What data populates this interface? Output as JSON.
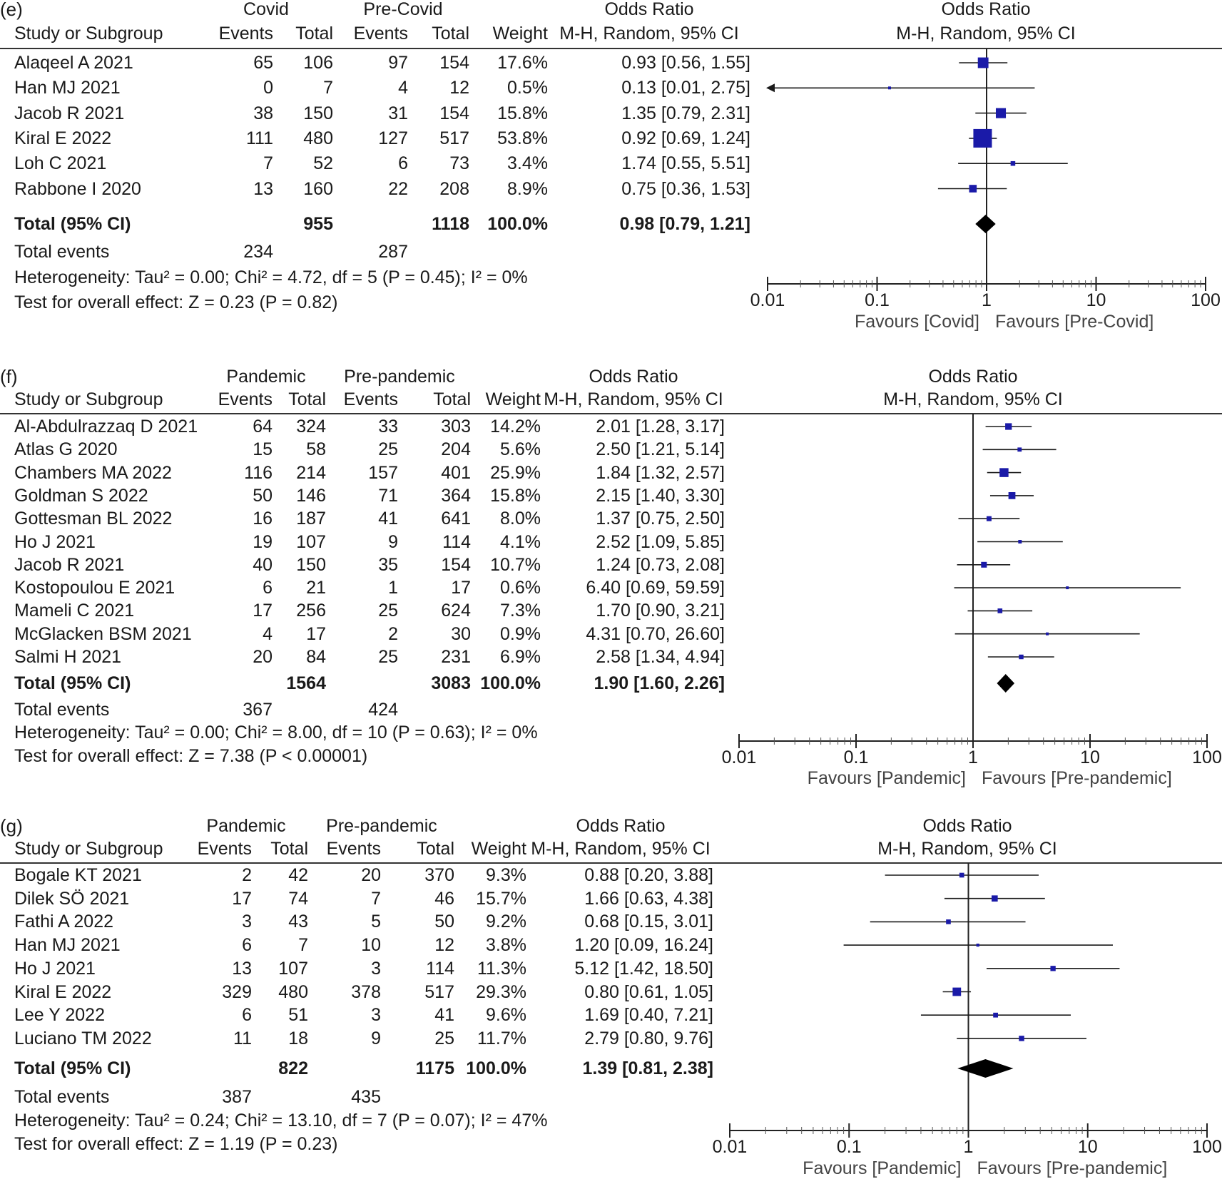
{
  "chart_data": [
    {
      "type": "forest",
      "panel_label": "(e)",
      "group1": "Covid",
      "group2": "Pre-Covid",
      "col_study": "Study or Subgroup",
      "col_events": "Events",
      "col_total": "Total",
      "col_weight": "Weight",
      "col_or": "Odds Ratio",
      "col_method": "M-H, Random, 95% CI",
      "studies": [
        {
          "name": "Alaqeel A 2021",
          "e1": "65",
          "n1": "106",
          "e2": "97",
          "n2": "154",
          "weight": "17.6%",
          "ci": "0.93 [0.56, 1.55]",
          "or": 0.93,
          "lo": 0.56,
          "hi": 1.55,
          "w": 17.6
        },
        {
          "name": "Han MJ 2021",
          "e1": "0",
          "n1": "7",
          "e2": "4",
          "n2": "12",
          "weight": "0.5%",
          "ci": "0.13 [0.01, 2.75]",
          "or": 0.13,
          "lo": 0.01,
          "hi": 2.75,
          "w": 0.5
        },
        {
          "name": "Jacob R 2021",
          "e1": "38",
          "n1": "150",
          "e2": "31",
          "n2": "154",
          "weight": "15.8%",
          "ci": "1.35 [0.79, 2.31]",
          "or": 1.35,
          "lo": 0.79,
          "hi": 2.31,
          "w": 15.8
        },
        {
          "name": "Kiral E 2022",
          "e1": "111",
          "n1": "480",
          "e2": "127",
          "n2": "517",
          "weight": "53.8%",
          "ci": "0.92 [0.69, 1.24]",
          "or": 0.92,
          "lo": 0.69,
          "hi": 1.24,
          "w": 53.8
        },
        {
          "name": "Loh C 2021",
          "e1": "7",
          "n1": "52",
          "e2": "6",
          "n2": "73",
          "weight": "3.4%",
          "ci": "1.74 [0.55, 5.51]",
          "or": 1.74,
          "lo": 0.55,
          "hi": 5.51,
          "w": 3.4
        },
        {
          "name": "Rabbone I 2020",
          "e1": "13",
          "n1": "160",
          "e2": "22",
          "n2": "208",
          "weight": "8.9%",
          "ci": "0.75 [0.36, 1.53]",
          "or": 0.75,
          "lo": 0.36,
          "hi": 1.53,
          "w": 8.9
        }
      ],
      "total": {
        "label": "Total (95% CI)",
        "n1": "955",
        "n2": "1118",
        "weight": "100.0%",
        "ci": "0.98 [0.79, 1.21]",
        "or": 0.98,
        "lo": 0.79,
        "hi": 1.21
      },
      "total_events": {
        "label": "Total events",
        "e1": "234",
        "e2": "287"
      },
      "heterogeneity": "Heterogeneity: Tau² = 0.00; Chi² = 4.72, df = 5 (P = 0.45); I² = 0%",
      "overall": "Test for overall effect: Z = 0.23 (P = 0.82)",
      "ticks": [
        "0.01",
        "0.1",
        "1",
        "10",
        "100"
      ],
      "favours_left": "Favours [Covid]",
      "favours_right": "Favours [Pre-Covid]",
      "xlim": [
        0.01,
        100
      ],
      "scale": "log"
    },
    {
      "type": "forest",
      "panel_label": "(f)",
      "group1": "Pandemic",
      "group2": "Pre-pandemic",
      "col_study": "Study or Subgroup",
      "col_events": "Events",
      "col_total": "Total",
      "col_weight": "Weight",
      "col_or": "Odds Ratio",
      "col_method": "M-H, Random, 95% CI",
      "studies": [
        {
          "name": "Al-Abdulrazzaq D 2021",
          "e1": "64",
          "n1": "324",
          "e2": "33",
          "n2": "303",
          "weight": "14.2%",
          "ci": "2.01 [1.28, 3.17]",
          "or": 2.01,
          "lo": 1.28,
          "hi": 3.17,
          "w": 14.2
        },
        {
          "name": "Atlas G 2020",
          "e1": "15",
          "n1": "58",
          "e2": "25",
          "n2": "204",
          "weight": "5.6%",
          "ci": "2.50 [1.21, 5.14]",
          "or": 2.5,
          "lo": 1.21,
          "hi": 5.14,
          "w": 5.6
        },
        {
          "name": "Chambers MA 2022",
          "e1": "116",
          "n1": "214",
          "e2": "157",
          "n2": "401",
          "weight": "25.9%",
          "ci": "1.84 [1.32, 2.57]",
          "or": 1.84,
          "lo": 1.32,
          "hi": 2.57,
          "w": 25.9
        },
        {
          "name": "Goldman S 2022",
          "e1": "50",
          "n1": "146",
          "e2": "71",
          "n2": "364",
          "weight": "15.8%",
          "ci": "2.15 [1.40, 3.30]",
          "or": 2.15,
          "lo": 1.4,
          "hi": 3.3,
          "w": 15.8
        },
        {
          "name": "Gottesman BL 2022",
          "e1": "16",
          "n1": "187",
          "e2": "41",
          "n2": "641",
          "weight": "8.0%",
          "ci": "1.37 [0.75, 2.50]",
          "or": 1.37,
          "lo": 0.75,
          "hi": 2.5,
          "w": 8.0
        },
        {
          "name": "Ho J 2021",
          "e1": "19",
          "n1": "107",
          "e2": "9",
          "n2": "114",
          "weight": "4.1%",
          "ci": "2.52 [1.09, 5.85]",
          "or": 2.52,
          "lo": 1.09,
          "hi": 5.85,
          "w": 4.1
        },
        {
          "name": "Jacob R 2021",
          "e1": "40",
          "n1": "150",
          "e2": "35",
          "n2": "154",
          "weight": "10.7%",
          "ci": "1.24 [0.73, 2.08]",
          "or": 1.24,
          "lo": 0.73,
          "hi": 2.08,
          "w": 10.7
        },
        {
          "name": "Kostopoulou E 2021",
          "e1": "6",
          "n1": "21",
          "e2": "1",
          "n2": "17",
          "weight": "0.6%",
          "ci": "6.40 [0.69, 59.59]",
          "or": 6.4,
          "lo": 0.69,
          "hi": 59.59,
          "w": 0.6
        },
        {
          "name": "Mameli C 2021",
          "e1": "17",
          "n1": "256",
          "e2": "25",
          "n2": "624",
          "weight": "7.3%",
          "ci": "1.70 [0.90, 3.21]",
          "or": 1.7,
          "lo": 0.9,
          "hi": 3.21,
          "w": 7.3
        },
        {
          "name": "McGlacken BSM 2021",
          "e1": "4",
          "n1": "17",
          "e2": "2",
          "n2": "30",
          "weight": "0.9%",
          "ci": "4.31 [0.70, 26.60]",
          "or": 4.31,
          "lo": 0.7,
          "hi": 26.6,
          "w": 0.9
        },
        {
          "name": "Salmi H 2021",
          "e1": "20",
          "n1": "84",
          "e2": "25",
          "n2": "231",
          "weight": "6.9%",
          "ci": "2.58 [1.34, 4.94]",
          "or": 2.58,
          "lo": 1.34,
          "hi": 4.94,
          "w": 6.9
        }
      ],
      "total": {
        "label": "Total (95% CI)",
        "n1": "1564",
        "n2": "3083",
        "weight": "100.0%",
        "ci": "1.90 [1.60, 2.26]",
        "or": 1.9,
        "lo": 1.6,
        "hi": 2.26
      },
      "total_events": {
        "label": "Total events",
        "e1": "367",
        "e2": "424"
      },
      "heterogeneity": "Heterogeneity: Tau² = 0.00; Chi² = 8.00, df = 10 (P = 0.63); I² = 0%",
      "overall": "Test for overall effect: Z = 7.38 (P < 0.00001)",
      "ticks": [
        "0.01",
        "0.1",
        "1",
        "10",
        "100"
      ],
      "favours_left": "Favours [Pandemic]",
      "favours_right": "Favours [Pre-pandemic]",
      "xlim": [
        0.01,
        100
      ],
      "scale": "log"
    },
    {
      "type": "forest",
      "panel_label": "(g)",
      "group1": "Pandemic",
      "group2": "Pre-pandemic",
      "col_study": "Study or Subgroup",
      "col_events": "Events",
      "col_total": "Total",
      "col_weight": "Weight",
      "col_or": "Odds Ratio",
      "col_method": "M-H, Random, 95% CI",
      "studies": [
        {
          "name": "Bogale KT 2021",
          "e1": "2",
          "n1": "42",
          "e2": "20",
          "n2": "370",
          "weight": "9.3%",
          "ci": "0.88 [0.20, 3.88]",
          "or": 0.88,
          "lo": 0.2,
          "hi": 3.88,
          "w": 9.3
        },
        {
          "name": "Dilek SÖ 2021",
          "e1": "17",
          "n1": "74",
          "e2": "7",
          "n2": "46",
          "weight": "15.7%",
          "ci": "1.66 [0.63, 4.38]",
          "or": 1.66,
          "lo": 0.63,
          "hi": 4.38,
          "w": 15.7
        },
        {
          "name": "Fathi A 2022",
          "e1": "3",
          "n1": "43",
          "e2": "5",
          "n2": "50",
          "weight": "9.2%",
          "ci": "0.68 [0.15, 3.01]",
          "or": 0.68,
          "lo": 0.15,
          "hi": 3.01,
          "w": 9.2
        },
        {
          "name": "Han MJ 2021",
          "e1": "6",
          "n1": "7",
          "e2": "10",
          "n2": "12",
          "weight": "3.8%",
          "ci": "1.20 [0.09, 16.24]",
          "or": 1.2,
          "lo": 0.09,
          "hi": 16.24,
          "w": 3.8
        },
        {
          "name": "Ho J 2021",
          "e1": "13",
          "n1": "107",
          "e2": "3",
          "n2": "114",
          "weight": "11.3%",
          "ci": "5.12 [1.42, 18.50]",
          "or": 5.12,
          "lo": 1.42,
          "hi": 18.5,
          "w": 11.3
        },
        {
          "name": "Kiral E 2022",
          "e1": "329",
          "n1": "480",
          "e2": "378",
          "n2": "517",
          "weight": "29.3%",
          "ci": "0.80 [0.61, 1.05]",
          "or": 0.8,
          "lo": 0.61,
          "hi": 1.05,
          "w": 29.3
        },
        {
          "name": "Lee Y 2022",
          "e1": "6",
          "n1": "51",
          "e2": "3",
          "n2": "41",
          "weight": "9.6%",
          "ci": "1.69 [0.40, 7.21]",
          "or": 1.69,
          "lo": 0.4,
          "hi": 7.21,
          "w": 9.6
        },
        {
          "name": "Luciano TM 2022",
          "e1": "11",
          "n1": "18",
          "e2": "9",
          "n2": "25",
          "weight": "11.7%",
          "ci": "2.79 [0.80, 9.76]",
          "or": 2.79,
          "lo": 0.8,
          "hi": 9.76,
          "w": 11.7
        }
      ],
      "total": {
        "label": "Total (95% CI)",
        "n1": "822",
        "n2": "1175",
        "weight": "100.0%",
        "ci": "1.39 [0.81, 2.38]",
        "or": 1.39,
        "lo": 0.81,
        "hi": 2.38
      },
      "total_events": {
        "label": "Total events",
        "e1": "387",
        "e2": "435"
      },
      "heterogeneity": "Heterogeneity: Tau² = 0.24; Chi² = 13.10, df = 7 (P = 0.07); I² = 47%",
      "overall": "Test for overall effect: Z = 1.19 (P = 0.23)",
      "ticks": [
        "0.01",
        "0.1",
        "1",
        "10",
        "100"
      ],
      "favours_left": "Favours [Pandemic]",
      "favours_right": "Favours [Pre-pandemic]",
      "xlim": [
        0.01,
        100
      ],
      "scale": "log"
    }
  ],
  "colors": {
    "square": "#1a1aa8",
    "line": "#1a1a1a",
    "diamond": "#000000"
  }
}
